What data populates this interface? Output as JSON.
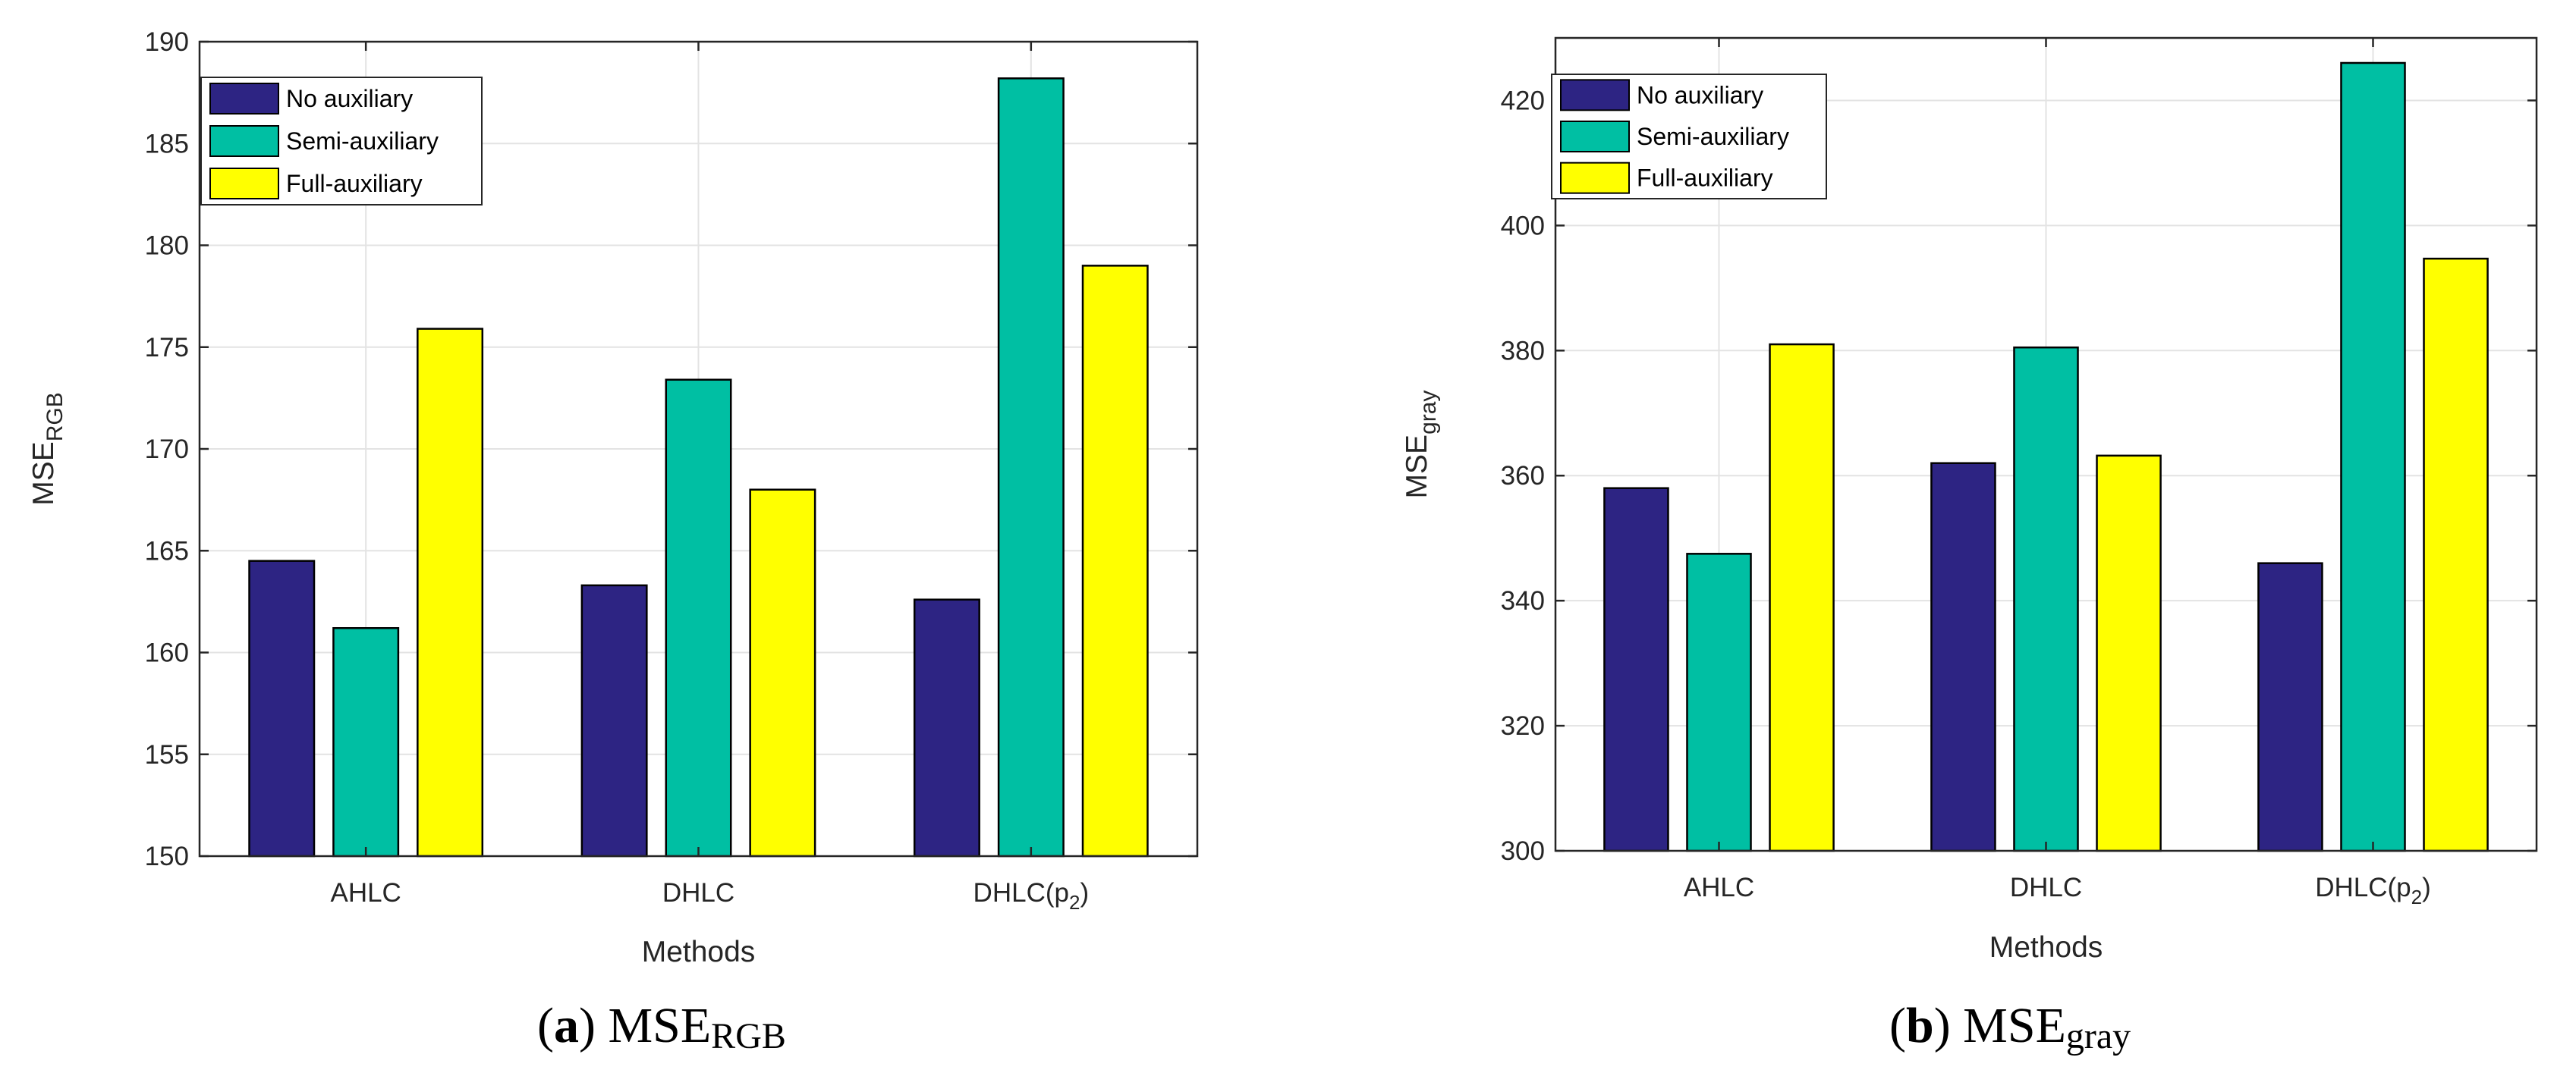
{
  "chart_data": [
    {
      "type": "bar",
      "categories": [
        "AHLC",
        "DHLC",
        "DHLC(p2)"
      ],
      "category_labels": [
        {
          "main": "AHLC",
          "sub": ""
        },
        {
          "main": "DHLC",
          "sub": ""
        },
        {
          "main": "DHLC(p",
          "sub": "2",
          "tail": ")"
        }
      ],
      "series": [
        {
          "name": "No auxiliary",
          "color": "#2d2483",
          "values": [
            164.5,
            163.3,
            162.6
          ]
        },
        {
          "name": "Semi-auxiliary",
          "color": "#00bfa3",
          "values": [
            161.2,
            173.4,
            188.2
          ]
        },
        {
          "name": "Full-auxiliary",
          "color": "#ffff00",
          "values": [
            175.9,
            168.0,
            179.0
          ]
        }
      ],
      "xlabel": "Methods",
      "ylabel": {
        "main": "MSE",
        "sub": "RGB"
      },
      "ylim": [
        150,
        190
      ],
      "yticks": [
        150,
        155,
        160,
        165,
        170,
        175,
        180,
        185,
        190
      ],
      "grid": true,
      "legend": "top-left",
      "caption": {
        "letter": "a",
        "main": "MSE",
        "sub": "RGB"
      }
    },
    {
      "type": "bar",
      "categories": [
        "AHLC",
        "DHLC",
        "DHLC(p2)"
      ],
      "category_labels": [
        {
          "main": "AHLC",
          "sub": ""
        },
        {
          "main": "DHLC",
          "sub": ""
        },
        {
          "main": "DHLC(p",
          "sub": "2",
          "tail": ")"
        }
      ],
      "series": [
        {
          "name": "No auxiliary",
          "color": "#2d2483",
          "values": [
            358.0,
            362.0,
            346.0
          ]
        },
        {
          "name": "Semi-auxiliary",
          "color": "#00bfa3",
          "values": [
            347.5,
            380.5,
            426.0
          ]
        },
        {
          "name": "Full-auxiliary",
          "color": "#ffff00",
          "values": [
            381.0,
            363.2,
            394.7
          ]
        }
      ],
      "xlabel": "Methods",
      "ylabel": {
        "main": "MSE",
        "sub": "gray"
      },
      "ylim": [
        300,
        430
      ],
      "yticks": [
        300,
        320,
        340,
        360,
        380,
        400,
        420
      ],
      "grid": true,
      "legend": "top-left",
      "caption": {
        "letter": "b",
        "main": "MSE",
        "sub": "gray"
      }
    }
  ]
}
